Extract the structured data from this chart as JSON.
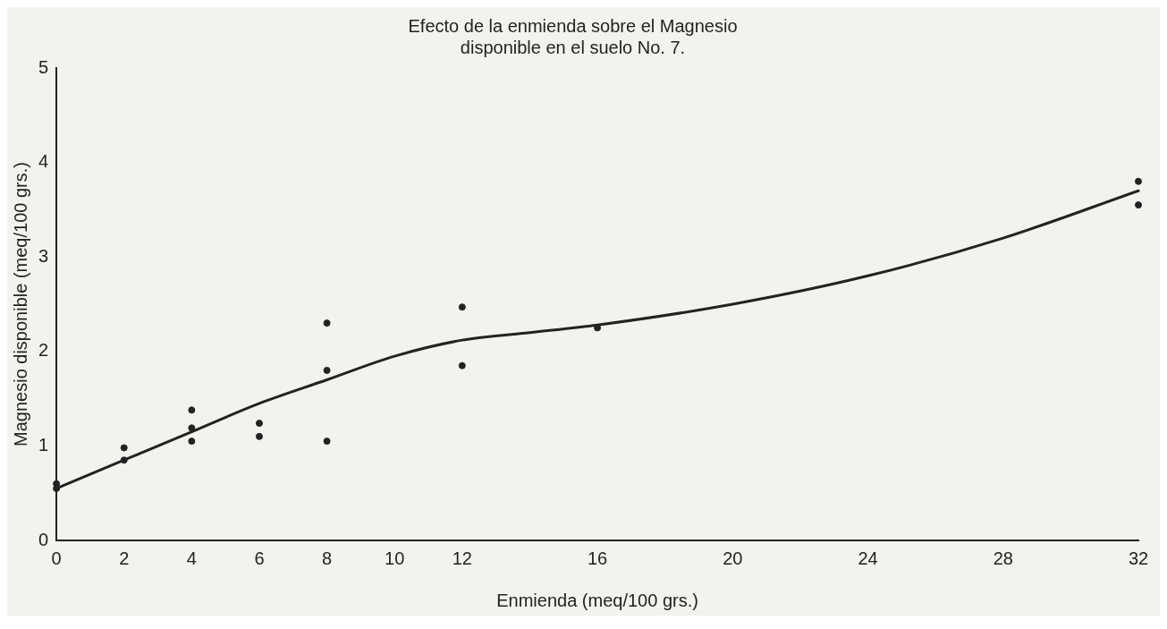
{
  "chart_data": {
    "type": "scatter",
    "title": "Efecto de la enmienda sobre el Magnesio\ndisponible en el suelo No. 7.",
    "xlabel": "Enmienda (meq/100 grs.)",
    "ylabel": "Magnesio disponible (meq/100 grs.)",
    "xlim": [
      0,
      32
    ],
    "xticks": [
      0,
      2,
      4,
      6,
      8,
      10,
      12,
      16,
      20,
      24,
      28,
      32
    ],
    "ylim": [
      0,
      5
    ],
    "yticks": [
      0,
      1,
      2,
      3,
      4,
      5
    ],
    "grid": false,
    "legend": false,
    "series": [
      {
        "marker": "circle",
        "color": "#222222",
        "x": [
          0,
          0,
          2,
          2,
          4,
          4,
          4,
          6,
          6,
          8,
          8,
          8,
          12,
          12,
          16,
          32,
          32
        ],
        "values": [
          0.55,
          0.6,
          0.98,
          0.85,
          1.38,
          1.19,
          1.05,
          1.24,
          1.1,
          2.3,
          1.8,
          1.05,
          2.47,
          1.85,
          2.25,
          3.8,
          3.55
        ]
      },
      {
        "type": "line",
        "marker": "none",
        "line_style": "solid",
        "color": "#222222",
        "x": [
          0,
          2,
          4,
          6,
          8,
          10,
          12,
          14,
          16,
          20,
          24,
          28,
          32
        ],
        "values": [
          0.55,
          0.85,
          1.15,
          1.45,
          1.7,
          1.95,
          2.12,
          2.2,
          2.28,
          2.5,
          2.8,
          3.2,
          3.7
        ]
      }
    ]
  }
}
